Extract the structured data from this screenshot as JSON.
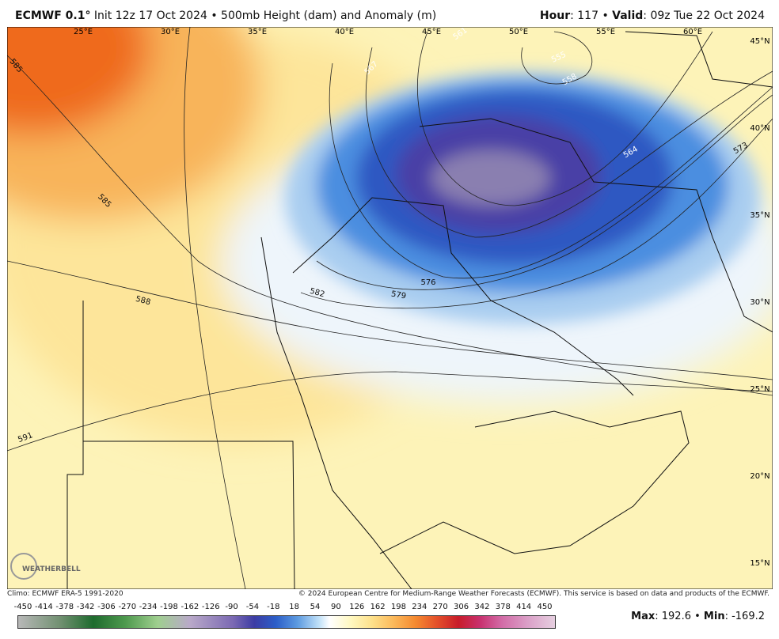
{
  "header": {
    "model": "ECMWF 0.1°",
    "description": " Init 12z 17 Oct 2024 • 500mb Height (dam) and Anomaly (m)",
    "hour_label": "Hour",
    "hour_value": ": 117 • ",
    "valid_label": "Valid",
    "valid_value": ": 09z Tue 22 Oct 2024"
  },
  "map": {
    "lon_labels": [
      "25°E",
      "30°E",
      "35°E",
      "40°E",
      "45°E",
      "50°E",
      "55°E",
      "60°E"
    ],
    "lat_labels": [
      "45°N",
      "40°N",
      "35°N",
      "30°N",
      "25°N",
      "20°N",
      "15°N"
    ],
    "contour_labels": [
      "585",
      "585",
      "588",
      "591",
      "582",
      "579",
      "576",
      "573",
      "564",
      "558",
      "555",
      "561",
      "567"
    ],
    "logo": "WEATHERBELL"
  },
  "footer": {
    "climo": "Climo: ECMWF ERA-5 1991-2020",
    "copyright": "© 2024 European Centre for Medium-Range Weather Forecasts (ECMWF). This service is based on data and products of the ECMWF."
  },
  "colorbar": {
    "ticks": [
      -450,
      -414,
      -378,
      -342,
      -306,
      -270,
      -234,
      -198,
      -162,
      -126,
      -90,
      -54,
      -18,
      18,
      54,
      90,
      126,
      162,
      198,
      234,
      270,
      306,
      342,
      378,
      414,
      450
    ]
  },
  "stats": {
    "max_label": "Max",
    "max_value": ": 192.6 • ",
    "min_label": "Min",
    "min_value": ": -169.2"
  }
}
